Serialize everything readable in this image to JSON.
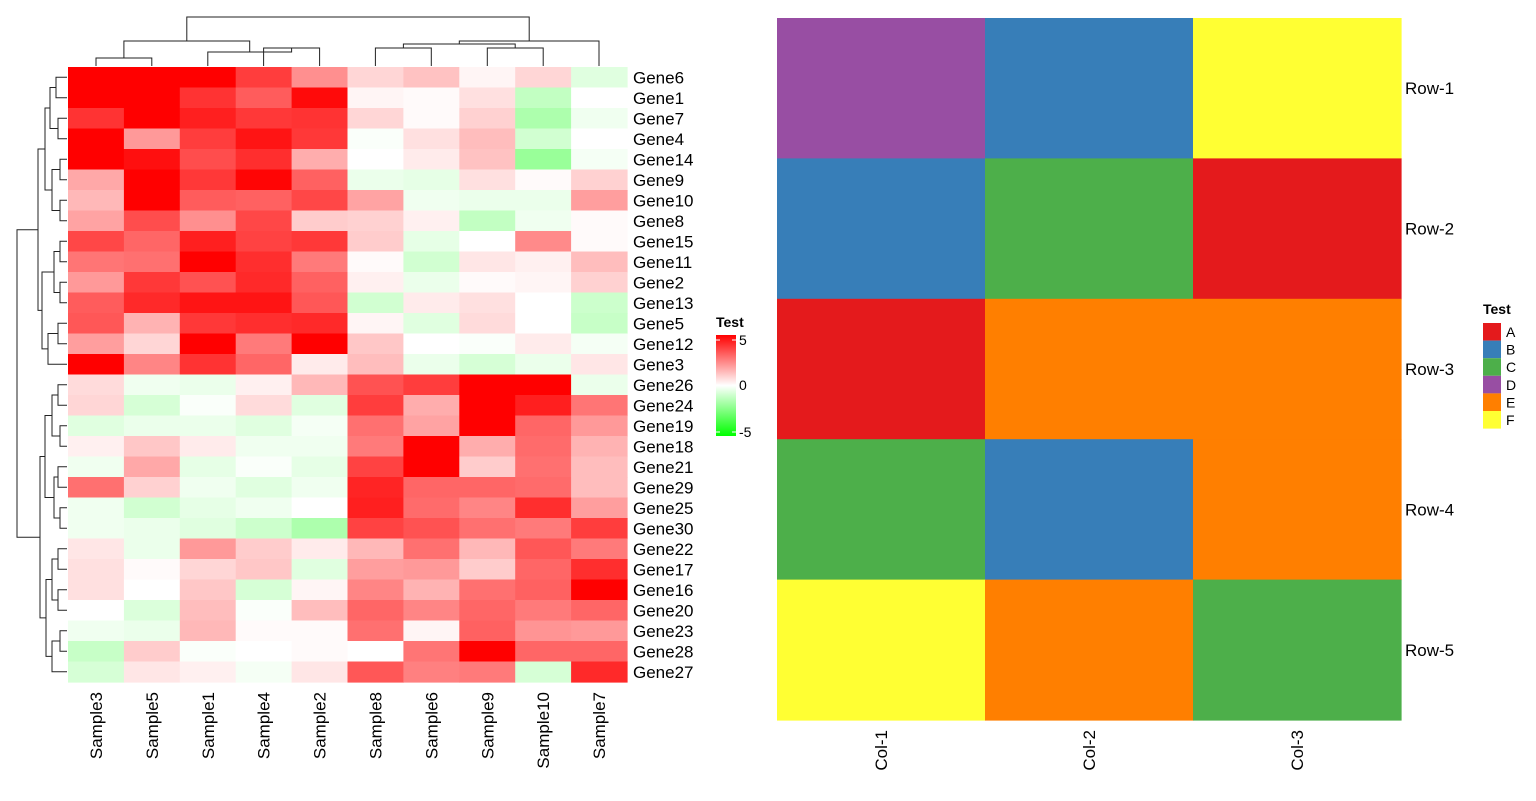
{
  "chart_data": [
    {
      "type": "heatmap",
      "rows": [
        "Gene6",
        "Gene1",
        "Gene7",
        "Gene4",
        "Gene14",
        "Gene9",
        "Gene10",
        "Gene8",
        "Gene15",
        "Gene11",
        "Gene2",
        "Gene13",
        "Gene5",
        "Gene12",
        "Gene3",
        "Gene26",
        "Gene24",
        "Gene19",
        "Gene18",
        "Gene21",
        "Gene29",
        "Gene25",
        "Gene30",
        "Gene22",
        "Gene17",
        "Gene16",
        "Gene20",
        "Gene23",
        "Gene28",
        "Gene27"
      ],
      "columns": [
        "Sample3",
        "Sample5",
        "Sample1",
        "Sample4",
        "Sample2",
        "Sample8",
        "Sample6",
        "Sample9",
        "Sample10",
        "Sample7"
      ],
      "values": [
        [
          5.0,
          5.0,
          5.0,
          3.8,
          2.2,
          0.8,
          1.2,
          0.2,
          0.8,
          -0.6
        ],
        [
          5.0,
          5.0,
          4.0,
          3.2,
          4.8,
          0.2,
          0.1,
          0.6,
          -1.2,
          0.0
        ],
        [
          4.0,
          5.0,
          4.4,
          3.9,
          4.0,
          0.8,
          0.1,
          0.9,
          -1.6,
          -0.3
        ],
        [
          5.0,
          2.0,
          3.8,
          4.6,
          3.9,
          -0.1,
          0.6,
          1.3,
          -0.9,
          0.0
        ],
        [
          5.0,
          4.7,
          3.5,
          4.1,
          1.6,
          0.0,
          0.4,
          1.2,
          -2.0,
          -0.2
        ],
        [
          1.7,
          5.0,
          3.9,
          4.9,
          3.1,
          -0.4,
          -0.5,
          0.6,
          0.1,
          0.9
        ],
        [
          1.4,
          5.0,
          3.2,
          3.1,
          3.6,
          1.8,
          -0.3,
          -0.4,
          -0.4,
          1.9
        ],
        [
          1.8,
          3.5,
          2.2,
          3.6,
          1.0,
          0.9,
          0.3,
          -1.2,
          -0.3,
          0.1
        ],
        [
          3.6,
          3.0,
          4.4,
          3.7,
          3.9,
          1.0,
          -0.5,
          0.0,
          2.3,
          0.1
        ],
        [
          2.7,
          2.8,
          5.0,
          4.1,
          2.6,
          0.1,
          -0.9,
          0.5,
          0.3,
          1.3
        ],
        [
          2.0,
          3.9,
          3.4,
          4.2,
          3.1,
          0.3,
          -0.4,
          0.1,
          0.2,
          0.9
        ],
        [
          3.2,
          4.2,
          4.6,
          4.6,
          3.3,
          -0.9,
          0.4,
          0.6,
          0.0,
          -1.0
        ],
        [
          3.3,
          1.5,
          3.9,
          4.1,
          4.2,
          0.2,
          -0.6,
          0.7,
          0.0,
          -1.1
        ],
        [
          1.9,
          0.8,
          5.0,
          2.6,
          5.0,
          1.1,
          0.0,
          -0.1,
          0.4,
          -0.2
        ],
        [
          5.0,
          2.4,
          4.0,
          3.0,
          0.4,
          1.3,
          -0.4,
          -0.8,
          -0.4,
          0.5
        ],
        [
          0.7,
          -0.3,
          -0.4,
          0.3,
          1.4,
          3.4,
          3.8,
          5.0,
          5.0,
          -0.4
        ],
        [
          0.8,
          -0.8,
          -0.1,
          0.7,
          -0.6,
          3.8,
          1.6,
          5.0,
          4.4,
          2.7
        ],
        [
          -0.6,
          -0.4,
          -0.4,
          -0.6,
          -0.2,
          2.8,
          1.8,
          5.0,
          3.0,
          2.0
        ],
        [
          0.3,
          1.1,
          0.4,
          -0.3,
          -0.3,
          2.6,
          5.0,
          1.6,
          2.9,
          1.5
        ],
        [
          -0.3,
          1.7,
          -0.5,
          -0.1,
          -0.5,
          3.7,
          5.0,
          1.0,
          2.8,
          1.3
        ],
        [
          2.8,
          0.9,
          -0.3,
          -0.6,
          -0.3,
          4.3,
          3.0,
          3.0,
          2.9,
          1.3
        ],
        [
          -0.3,
          -0.9,
          -0.5,
          -0.3,
          0.0,
          4.4,
          2.9,
          2.4,
          4.1,
          1.9
        ],
        [
          -0.3,
          -0.4,
          -0.6,
          -1.0,
          -1.6,
          3.7,
          3.4,
          2.8,
          2.6,
          3.8
        ],
        [
          0.5,
          -0.4,
          2.0,
          1.0,
          0.4,
          1.4,
          2.8,
          1.4,
          3.3,
          2.6
        ],
        [
          0.6,
          0.1,
          0.8,
          1.1,
          -0.6,
          1.9,
          2.0,
          1.0,
          3.0,
          4.1
        ],
        [
          0.6,
          0.0,
          1.1,
          -0.8,
          0.2,
          2.4,
          1.5,
          2.8,
          3.1,
          5.0
        ],
        [
          0.0,
          -0.7,
          1.3,
          -0.1,
          1.3,
          3.0,
          2.4,
          3.0,
          2.6,
          3.0
        ],
        [
          -0.3,
          -0.4,
          1.4,
          0.1,
          0.1,
          2.8,
          0.2,
          3.1,
          2.1,
          2.0
        ],
        [
          -1.1,
          1.0,
          -0.1,
          0.0,
          0.1,
          0.0,
          2.7,
          5.0,
          3.0,
          3.0
        ],
        [
          -0.8,
          0.5,
          0.3,
          -0.2,
          0.5,
          3.3,
          2.5,
          2.6,
          -0.8,
          4.2
        ]
      ],
      "legend": {
        "title": "Test",
        "ticks": [
          5,
          0,
          -5
        ],
        "low_color": "#00ff00",
        "mid_color": "#ffffff",
        "high_color": "#ff0000"
      },
      "row_dendrogram": true,
      "column_dendrogram": true
    },
    {
      "type": "heatmap",
      "rows": [
        "Row-1",
        "Row-2",
        "Row-3",
        "Row-4",
        "Row-5"
      ],
      "columns": [
        "Col-1",
        "Col-2",
        "Col-3"
      ],
      "values": [
        [
          "D",
          "B",
          "F"
        ],
        [
          "B",
          "C",
          "A"
        ],
        [
          "A",
          "E",
          "E"
        ],
        [
          "C",
          "B",
          "E"
        ],
        [
          "F",
          "E",
          "C"
        ]
      ],
      "legend": {
        "title": "Test",
        "levels": [
          "A",
          "B",
          "C",
          "D",
          "E",
          "F"
        ],
        "colors": {
          "A": "#e41a1c",
          "B": "#377eb8",
          "C": "#4daf4a",
          "D": "#984ea3",
          "E": "#ff7f00",
          "F": "#ffff33"
        }
      }
    }
  ]
}
